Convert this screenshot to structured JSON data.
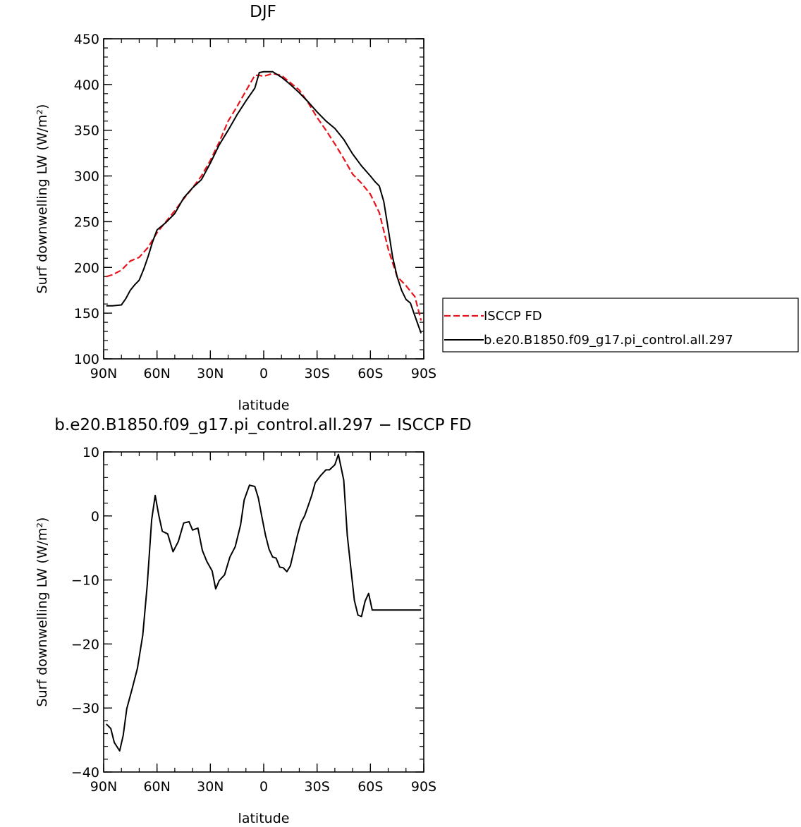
{
  "chart_data": [
    {
      "type": "line",
      "title": "DJF",
      "xlabel": "latitude",
      "ylabel": "Surf downwelling LW (W/m²)",
      "xlim": [
        90,
        -90
      ],
      "ylim": [
        100,
        450
      ],
      "x_ticks": [
        90,
        60,
        30,
        0,
        -30,
        -60,
        -90
      ],
      "x_tick_labels": [
        "90N",
        "60N",
        "30N",
        "0",
        "30S",
        "60S",
        "90S"
      ],
      "y_ticks": [
        100,
        150,
        200,
        250,
        300,
        350,
        400,
        450
      ],
      "y_tick_labels": [
        "100",
        "150",
        "200",
        "250",
        "300",
        "350",
        "400",
        "450"
      ],
      "grid": false,
      "legend_position": "right",
      "series": [
        {
          "name": "ISCCP FD",
          "color": "#e8141c",
          "style": "dashed",
          "x": [
            88.5,
            85,
            80,
            75,
            70,
            65,
            60,
            55,
            50,
            45,
            40,
            35,
            30,
            25,
            20,
            15,
            10,
            5,
            2.5,
            0,
            -5,
            -10,
            -15,
            -20,
            -25,
            -30,
            -35,
            -40,
            -45,
            -50,
            -55,
            -60,
            -62.5,
            -65,
            -67.5,
            -70,
            -72.5,
            -75,
            -80,
            -85,
            -88.5
          ],
          "y": [
            190,
            192,
            197,
            207,
            211,
            222,
            238,
            250,
            262,
            275,
            287,
            300,
            317,
            337,
            360,
            376,
            393,
            410,
            410,
            409,
            412,
            410,
            402,
            394,
            380,
            364,
            350,
            335,
            319,
            302,
            292,
            280,
            270,
            260,
            240,
            220,
            205,
            190,
            180,
            168,
            142
          ]
        },
        {
          "name": "b.e20.B1850.f09_g17.pi_control.all.297",
          "color": "#000000",
          "style": "solid",
          "x": [
            88.5,
            85,
            80,
            77.5,
            75,
            72.5,
            70,
            67.5,
            65,
            62.5,
            60,
            57.5,
            55,
            50,
            45,
            40,
            35,
            30,
            25,
            20,
            15,
            10,
            5,
            2.5,
            0,
            -5,
            -10,
            -15,
            -20,
            -25,
            -30,
            -35,
            -40,
            -45,
            -50,
            -55,
            -60,
            -62.5,
            -65,
            -67.5,
            -70,
            -72.5,
            -75,
            -77.5,
            -80,
            -82.5,
            -85,
            -88.5
          ],
          "y": [
            158,
            158,
            159,
            166,
            175,
            181,
            186,
            198,
            212,
            228,
            241,
            245,
            249,
            259,
            276,
            287,
            296,
            314,
            334,
            350,
            367,
            382,
            396,
            413,
            414,
            414,
            408,
            400,
            391,
            381,
            370,
            360,
            352,
            340,
            324,
            311,
            300,
            294,
            289,
            272,
            242,
            211,
            190,
            175,
            165,
            161,
            147,
            128
          ]
        }
      ]
    },
    {
      "type": "line",
      "title": "b.e20.B1850.f09_g17.pi_control.all.297 − ISCCP FD",
      "xlabel": "latitude",
      "ylabel": "Surf downwelling LW (W/m²)",
      "xlim": [
        90,
        -90
      ],
      "ylim": [
        -40,
        10
      ],
      "x_ticks": [
        90,
        60,
        30,
        0,
        -30,
        -60,
        -90
      ],
      "x_tick_labels": [
        "90N",
        "60N",
        "30N",
        "0",
        "30S",
        "60S",
        "90S"
      ],
      "y_ticks": [
        -40,
        -30,
        -20,
        -10,
        0,
        10
      ],
      "y_tick_labels": [
        "−40",
        "−30",
        "−20",
        "−10",
        "0",
        "10"
      ],
      "grid": false,
      "series": [
        {
          "color": "#000000",
          "style": "solid",
          "x": [
            88.5,
            86,
            84,
            81,
            79,
            77,
            74,
            71,
            68,
            65.5,
            63,
            61,
            59,
            57,
            54,
            51,
            48,
            45,
            42,
            40,
            37,
            34.5,
            32,
            29,
            27,
            25,
            22,
            19,
            16,
            13,
            11,
            8,
            5,
            3,
            1,
            -1,
            -3,
            -5,
            -7,
            -9,
            -11,
            -13,
            -15,
            -17,
            -19,
            -21,
            -23,
            -25,
            -27,
            -29,
            -32,
            -35,
            -37,
            -40,
            -42,
            -45,
            -47,
            -49,
            -51,
            -53,
            -55,
            -57,
            -59,
            -61,
            -63,
            -66,
            -68,
            -70,
            -73,
            -75,
            -78,
            -80,
            -82,
            -84,
            -86,
            -88.5
          ],
          "y": [
            -32.5,
            -33.2,
            -35.4,
            -36.7,
            -34.3,
            -30.1,
            -27,
            -23.8,
            -18.6,
            -10.8,
            -0.6,
            3.2,
            0.1,
            -2.4,
            -2.8,
            -5.6,
            -4,
            -1.1,
            -0.9,
            -2.2,
            -1.9,
            -5.4,
            -7.1,
            -8.6,
            -11.4,
            -10.1,
            -9.2,
            -6.4,
            -4.8,
            -1.4,
            2.5,
            4.8,
            4.6,
            2.8,
            -0.2,
            -3,
            -5.2,
            -6.4,
            -6.6,
            -8,
            -8.1,
            -8.7,
            -7.8,
            -5.4,
            -3,
            -1,
            0,
            1.6,
            3.2,
            5.2,
            6.3,
            7.2,
            7.2,
            8,
            9.6,
            5.6,
            -3,
            -8.2,
            -13.2,
            -15.5,
            -15.7,
            -13.3,
            -12.1,
            -14.7,
            -14.7,
            -14.7,
            -14.7,
            -14.7,
            -14.7,
            -14.7,
            -14.7,
            -14.7,
            -14.7,
            -14.7,
            -14.7,
            -14.7
          ]
        }
      ]
    }
  ]
}
